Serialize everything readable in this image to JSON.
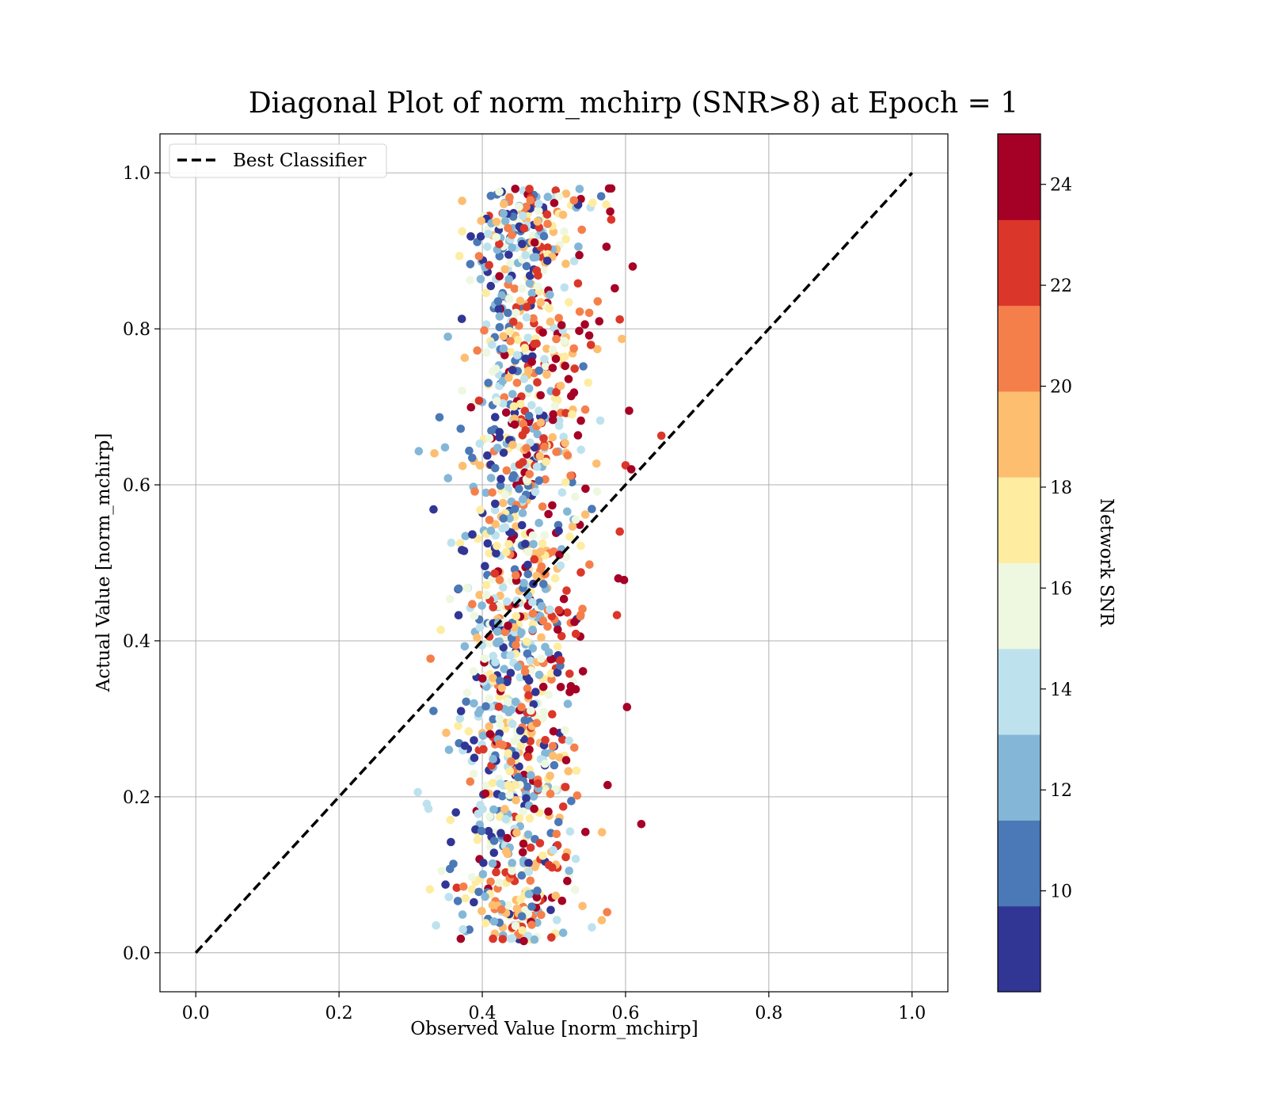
{
  "chart_data": {
    "type": "scatter",
    "title": "Diagonal Plot of norm_mchirp (SNR>8) at Epoch = 1",
    "xlabel": "Observed Value [norm_mchirp]",
    "ylabel": "Actual Value [norm_mchirp]",
    "xlim": [
      -0.05,
      1.05
    ],
    "ylim": [
      -0.05,
      1.05
    ],
    "xticks": [
      "0.0",
      "0.2",
      "0.4",
      "0.6",
      "0.8",
      "1.0"
    ],
    "yticks": [
      "0.0",
      "0.2",
      "0.4",
      "0.6",
      "0.8",
      "1.0"
    ],
    "grid": true,
    "legend": {
      "position": "top-left",
      "entries": [
        {
          "label": "Best Classifier",
          "style": "dashed",
          "color": "#000000"
        }
      ]
    },
    "reference_line": {
      "name": "Best Classifier",
      "x": [
        0.0,
        1.0
      ],
      "y": [
        0.0,
        1.0
      ]
    },
    "colorbar": {
      "label": "Network SNR",
      "range": [
        8,
        25
      ],
      "ticks": [
        "10",
        "12",
        "14",
        "16",
        "18",
        "20",
        "22",
        "24"
      ],
      "colors": [
        "#313695",
        "#4575b4",
        "#74add1",
        "#abd9e9",
        "#e0f3f8",
        "#ffffbf",
        "#fee090",
        "#fdae61",
        "#f46d43",
        "#d73027",
        "#a50026"
      ],
      "bins": [
        {
          "from": 8.0,
          "to": 9.7,
          "color": "#313695"
        },
        {
          "from": 9.7,
          "to": 11.4,
          "color": "#4b78b6"
        },
        {
          "from": 11.4,
          "to": 13.1,
          "color": "#84b7d7"
        },
        {
          "from": 13.1,
          "to": 14.8,
          "color": "#bde2ee"
        },
        {
          "from": 14.8,
          "to": 16.5,
          "color": "#eef8e0"
        },
        {
          "from": 16.5,
          "to": 18.2,
          "color": "#feeca1"
        },
        {
          "from": 18.2,
          "to": 19.9,
          "color": "#fdbe70"
        },
        {
          "from": 19.9,
          "to": 21.6,
          "color": "#f57f4b"
        },
        {
          "from": 21.6,
          "to": 23.3,
          "color": "#da372a"
        },
        {
          "from": 23.3,
          "to": 25.0,
          "color": "#a50026"
        }
      ]
    },
    "point_cloud": {
      "count": 1300,
      "x_center": 0.455,
      "x_spread": 0.05,
      "y_range": [
        0.015,
        0.98
      ],
      "snr_range": [
        8,
        25
      ]
    },
    "highlighted_points": [
      {
        "x": 0.58,
        "y": 0.98,
        "snr": 24.5
      },
      {
        "x": 0.577,
        "y": 0.98,
        "snr": 23.5
      },
      {
        "x": 0.566,
        "y": 0.97,
        "snr": 10.5
      },
      {
        "x": 0.43,
        "y": 0.96,
        "snr": 18.5
      },
      {
        "x": 0.61,
        "y": 0.88,
        "snr": 24.5
      },
      {
        "x": 0.65,
        "y": 0.663,
        "snr": 22.0
      },
      {
        "x": 0.605,
        "y": 0.695,
        "snr": 24.5
      },
      {
        "x": 0.622,
        "y": 0.165,
        "snr": 24.5
      },
      {
        "x": 0.602,
        "y": 0.315,
        "snr": 24.5
      },
      {
        "x": 0.575,
        "y": 0.215,
        "snr": 24.5
      },
      {
        "x": 0.31,
        "y": 0.206,
        "snr": 14.0
      },
      {
        "x": 0.342,
        "y": 0.414,
        "snr": 17.5
      },
      {
        "x": 0.372,
        "y": 0.925,
        "snr": 17.5
      },
      {
        "x": 0.352,
        "y": 0.79,
        "snr": 13.0
      },
      {
        "x": 0.348,
        "y": 0.648,
        "snr": 13.0
      },
      {
        "x": 0.37,
        "y": 0.018,
        "snr": 24.5
      },
      {
        "x": 0.458,
        "y": 0.015,
        "snr": 24.5
      },
      {
        "x": 0.44,
        "y": 0.018,
        "snr": 14.0
      },
      {
        "x": 0.415,
        "y": 0.018,
        "snr": 22.5
      },
      {
        "x": 0.373,
        "y": 0.03,
        "snr": 14.0
      },
      {
        "x": 0.343,
        "y": 0.105,
        "snr": 15.5
      },
      {
        "x": 0.59,
        "y": 0.48,
        "snr": 24.5
      },
      {
        "x": 0.598,
        "y": 0.478,
        "snr": 24.5
      },
      {
        "x": 0.588,
        "y": 0.433,
        "snr": 22.0
      },
      {
        "x": 0.592,
        "y": 0.54,
        "snr": 22.0
      },
      {
        "x": 0.6,
        "y": 0.625,
        "snr": 22.0
      },
      {
        "x": 0.608,
        "y": 0.62,
        "snr": 24.5
      },
      {
        "x": 0.595,
        "y": 0.787,
        "snr": 19.5
      },
      {
        "x": 0.592,
        "y": 0.812,
        "snr": 22.5
      },
      {
        "x": 0.585,
        "y": 0.852,
        "snr": 24.5
      },
      {
        "x": 0.58,
        "y": 0.94,
        "snr": 22.0
      }
    ]
  }
}
